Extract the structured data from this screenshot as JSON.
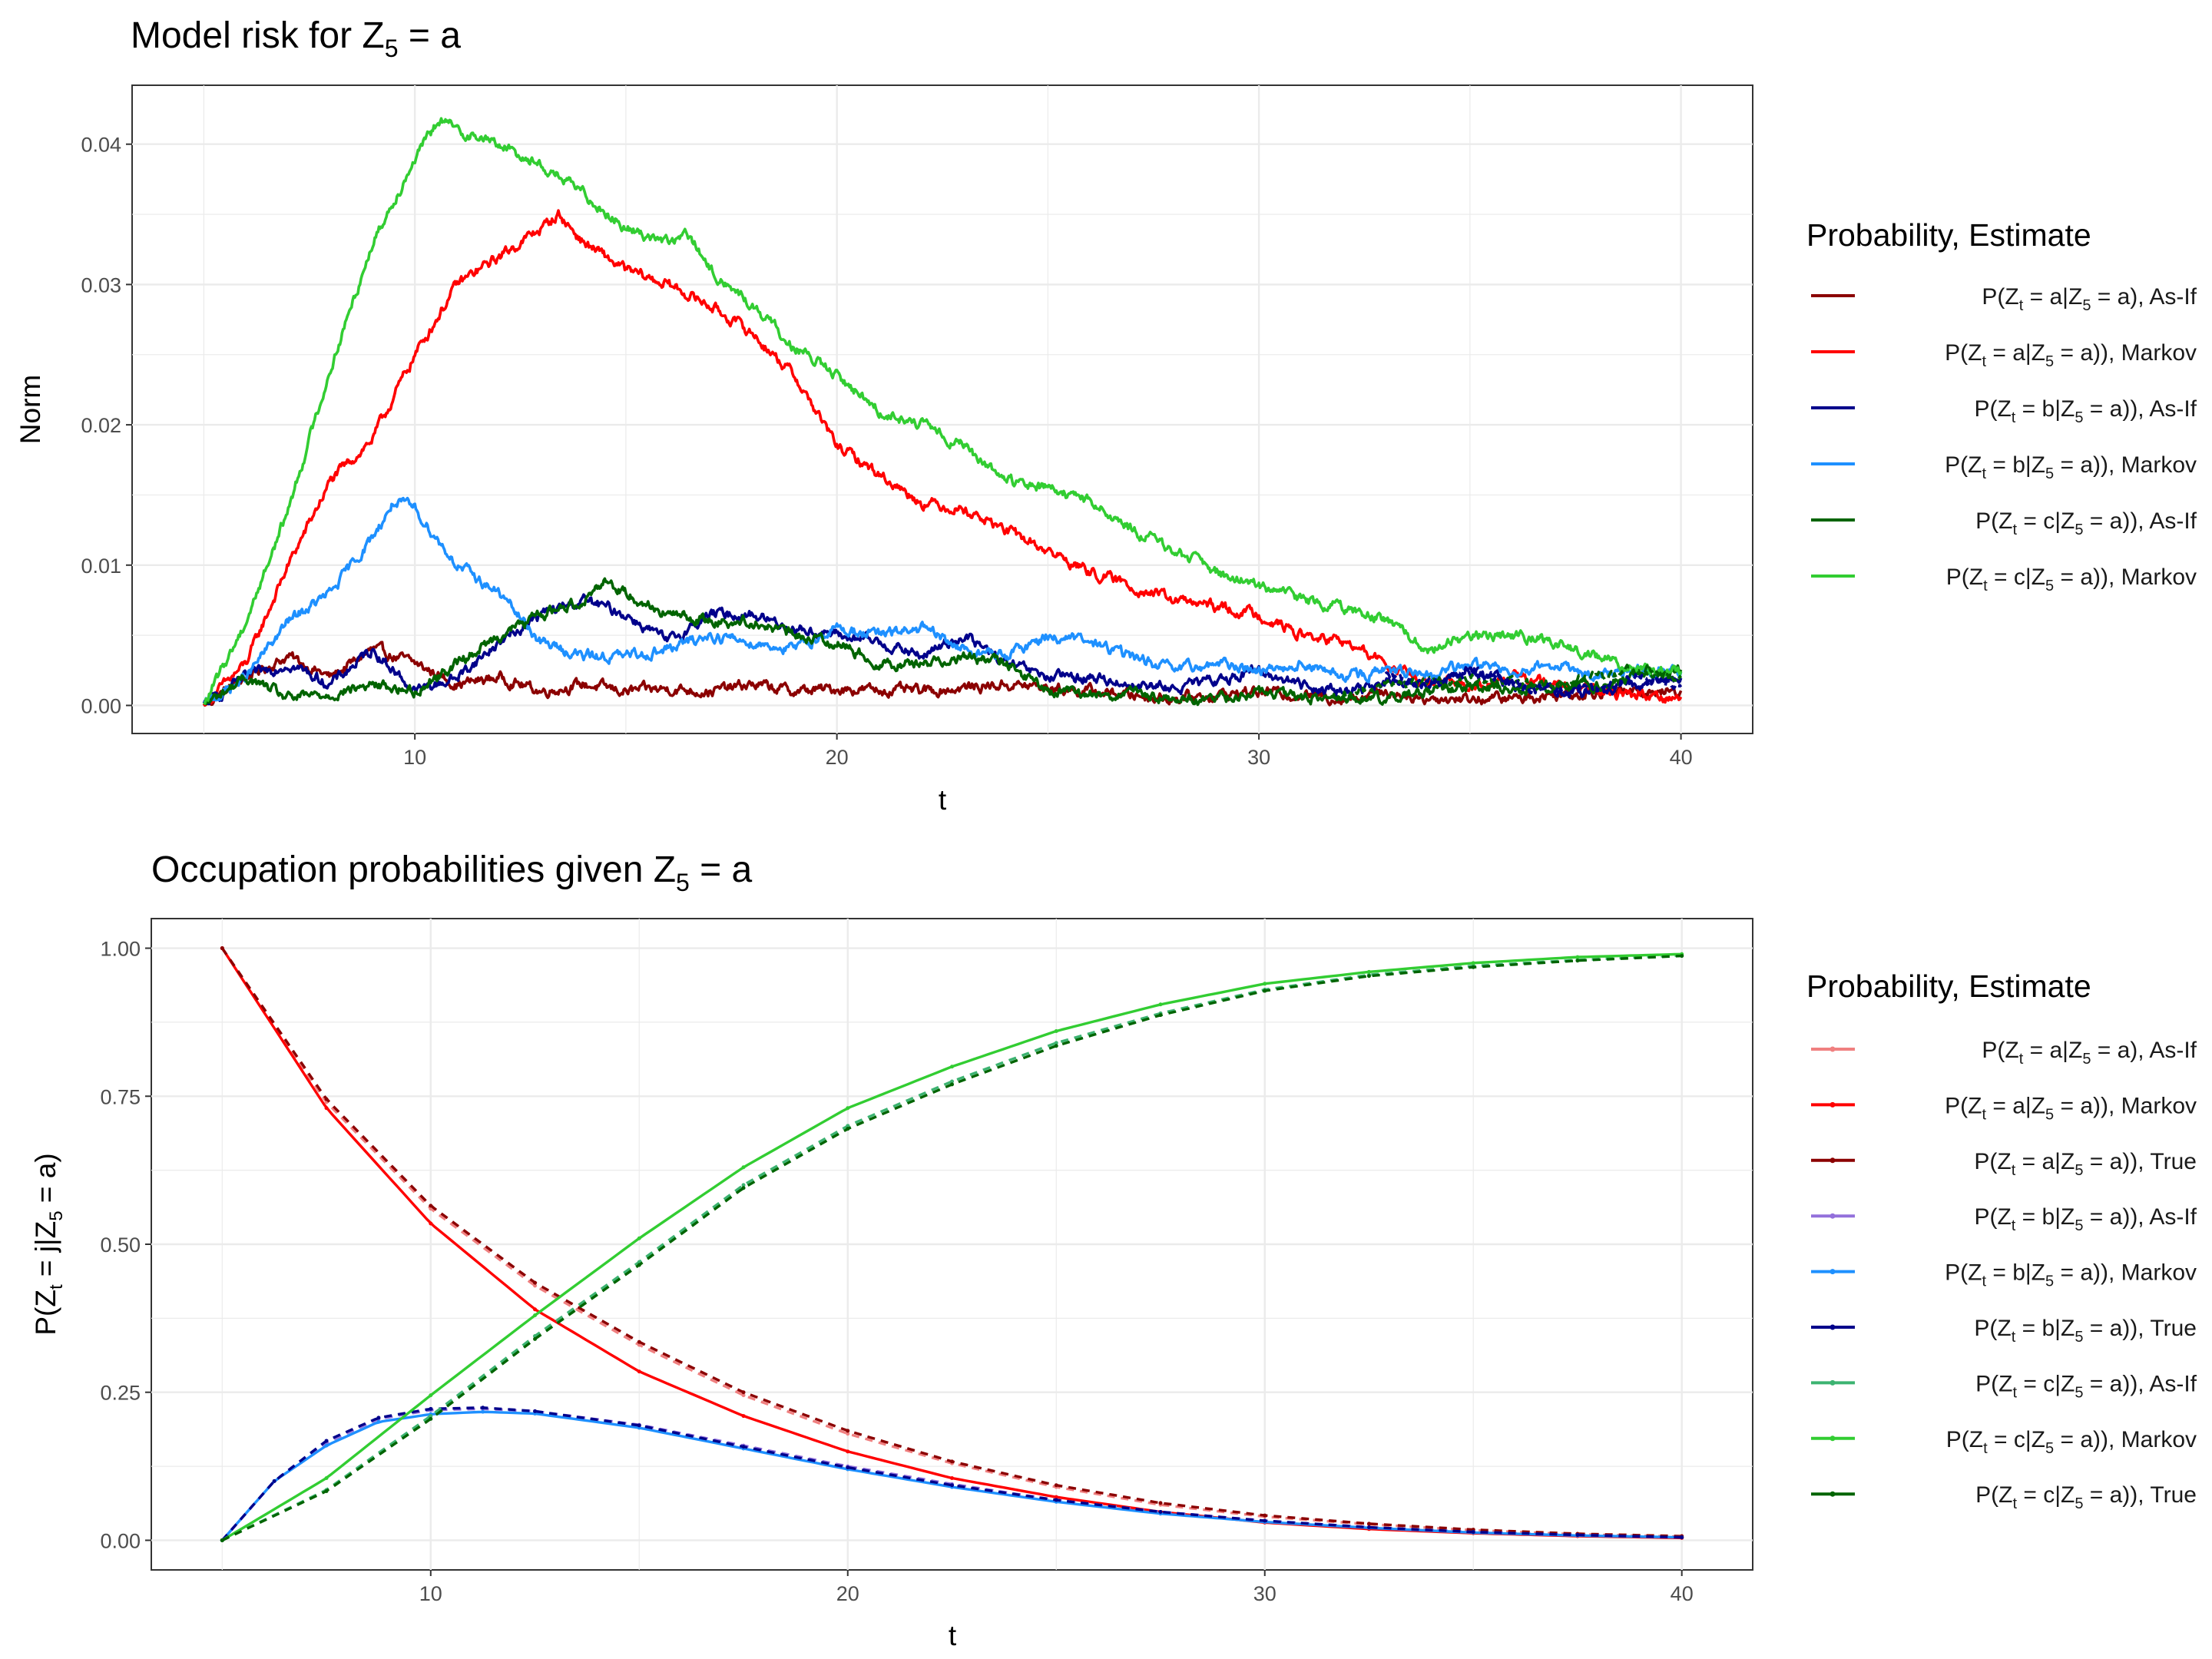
{
  "colors": {
    "a_asif": "#8b0000",
    "a_markov": "#ff0000",
    "b_asif": "#00008b",
    "b_markov": "#1e90ff",
    "c_asif": "#006400",
    "c_markov": "#32cd32",
    "bot_a_asif": "#f08080",
    "bot_a_markov": "#ff0000",
    "bot_a_true": "#8b0000",
    "bot_b_asif": "#9370db",
    "bot_b_markov": "#1e90ff",
    "bot_b_true": "#00008b",
    "bot_c_asif": "#3cb371",
    "bot_c_markov": "#32cd32",
    "bot_c_true": "#006400"
  },
  "chart_data": [
    {
      "type": "line",
      "title": "Model risk for Z₅ = a",
      "xlabel": "t",
      "ylabel": "Norm",
      "xlim": [
        3.3,
        41.7
      ],
      "ylim": [
        -0.002,
        0.0442
      ],
      "xticks": [
        "10",
        "20",
        "30",
        "40"
      ],
      "yticks": [
        "0.00",
        "0.01",
        "0.02",
        "0.03",
        "0.04"
      ],
      "grid": true,
      "legend_title": "Probability, Estimate",
      "legend_position": "right",
      "series": [
        {
          "name": "P(Zₜ = a|Z₅ = a), As-If",
          "color_key": "a_asif",
          "dashed": false,
          "x": [
            5,
            6,
            7,
            8,
            9,
            10,
            11,
            12,
            13,
            14,
            15,
            16,
            17,
            18,
            19,
            20,
            22,
            24,
            26,
            28,
            30,
            32,
            33,
            34,
            36,
            38,
            40
          ],
          "y": [
            0,
            0.002,
            0.0035,
            0.002,
            0.004,
            0.003,
            0.0015,
            0.002,
            0.001,
            0.0015,
            0.001,
            0.0012,
            0.001,
            0.0015,
            0.001,
            0.0012,
            0.001,
            0.0015,
            0.001,
            0.0005,
            0.001,
            0.0005,
            0.001,
            0.0005,
            0.0005,
            0.001,
            0.001
          ]
        },
        {
          "name": "P(Zₜ = a|Z₅ = a)), Markov",
          "color_key": "a_markov",
          "dashed": false,
          "x": [
            5,
            6,
            7,
            8,
            9,
            10,
            11,
            12,
            13,
            13.4,
            14,
            15,
            16,
            17,
            18,
            19,
            20,
            21,
            22,
            23,
            24,
            25,
            26,
            27,
            28,
            29,
            30,
            31,
            32,
            33,
            34,
            35,
            36,
            37,
            38,
            39,
            40
          ],
          "y": [
            0,
            0.003,
            0.01,
            0.016,
            0.019,
            0.025,
            0.03,
            0.032,
            0.034,
            0.035,
            0.033,
            0.031,
            0.03,
            0.0285,
            0.0265,
            0.0235,
            0.0185,
            0.0165,
            0.0145,
            0.014,
            0.0125,
            0.011,
            0.0095,
            0.0085,
            0.0075,
            0.007,
            0.0065,
            0.005,
            0.0045,
            0.003,
            0.0015,
            0.0015,
            0.002,
            0.0015,
            0.001,
            0.0008,
            0.0005
          ]
        },
        {
          "name": "P(Zₜ = b|Z₅ = a)), As-If",
          "color_key": "b_asif",
          "dashed": false,
          "x": [
            5,
            6,
            7,
            8,
            9,
            10,
            11,
            12,
            13,
            14,
            15,
            16,
            17,
            18,
            19,
            20,
            21,
            22,
            23,
            24,
            25,
            26,
            27,
            28,
            29,
            30,
            31,
            32,
            33,
            34,
            35,
            36,
            37,
            38,
            39,
            40
          ],
          "y": [
            0,
            0.002,
            0.003,
            0.0015,
            0.004,
            0.001,
            0.002,
            0.0045,
            0.0065,
            0.0075,
            0.0065,
            0.0045,
            0.0065,
            0.0065,
            0.0055,
            0.005,
            0.0045,
            0.0035,
            0.005,
            0.003,
            0.002,
            0.002,
            0.0015,
            0.0012,
            0.0018,
            0.0025,
            0.0015,
            0.001,
            0.0015,
            0.0015,
            0.0025,
            0.0015,
            0.001,
            0.001,
            0.0015,
            0.002
          ]
        },
        {
          "name": "P(Zₜ = b|Z₅ = a)), Markov",
          "color_key": "b_markov",
          "dashed": false,
          "x": [
            5,
            6,
            7,
            8,
            9,
            9.5,
            10,
            11,
            12,
            13,
            14,
            15,
            16,
            17,
            18,
            19,
            20,
            21,
            22,
            23,
            24,
            25,
            26,
            27,
            28,
            29,
            30,
            31,
            32,
            33,
            34,
            35,
            36,
            37,
            38,
            39,
            40
          ],
          "y": [
            0,
            0.002,
            0.006,
            0.008,
            0.012,
            0.0145,
            0.014,
            0.01,
            0.008,
            0.0045,
            0.0035,
            0.0035,
            0.004,
            0.005,
            0.0045,
            0.004,
            0.0055,
            0.005,
            0.0055,
            0.004,
            0.0035,
            0.005,
            0.0045,
            0.0035,
            0.0025,
            0.003,
            0.0025,
            0.003,
            0.002,
            0.0025,
            0.002,
            0.003,
            0.0025,
            0.003,
            0.002,
            0.0025,
            0.0025
          ]
        },
        {
          "name": "P(Zₜ = c|Z₅ = a)), As-If",
          "color_key": "c_asif",
          "dashed": false,
          "x": [
            5,
            6,
            7,
            8,
            9,
            10,
            11,
            12,
            13,
            14,
            14.5,
            15,
            16,
            17,
            18,
            19,
            20,
            21,
            22,
            23,
            24,
            25,
            26,
            27,
            28,
            29,
            30,
            31,
            32,
            33,
            34,
            35,
            36,
            37,
            38,
            39,
            40
          ],
          "y": [
            0,
            0.002,
            0.0005,
            0.0008,
            0.0015,
            0.001,
            0.003,
            0.005,
            0.0065,
            0.0075,
            0.009,
            0.008,
            0.0065,
            0.006,
            0.006,
            0.005,
            0.0045,
            0.003,
            0.003,
            0.0035,
            0.003,
            0.001,
            0.0008,
            0.0008,
            0.0005,
            0.0005,
            0.001,
            0.0005,
            0.0005,
            0.0005,
            0.001,
            0.0015,
            0.001,
            0.0015,
            0.0015,
            0.002,
            0.0025
          ]
        },
        {
          "name": "P(Zₜ = c|Z₅ = a)), Markov",
          "color_key": "c_markov",
          "dashed": false,
          "x": [
            5,
            6,
            7,
            8,
            9,
            10,
            10.6,
            11,
            12,
            13,
            14,
            15,
            16,
            16.5,
            17,
            18,
            19,
            20,
            21,
            22,
            23,
            24,
            25,
            26,
            27,
            28,
            29,
            30,
            31,
            32,
            33,
            34,
            35,
            36,
            37,
            38,
            39,
            40
          ],
          "y": [
            0,
            0.006,
            0.014,
            0.024,
            0.033,
            0.039,
            0.0418,
            0.041,
            0.04,
            0.0385,
            0.0365,
            0.034,
            0.033,
            0.0335,
            0.031,
            0.0285,
            0.0255,
            0.0235,
            0.021,
            0.02,
            0.0185,
            0.016,
            0.0155,
            0.0145,
            0.0125,
            0.011,
            0.0095,
            0.0085,
            0.0075,
            0.007,
            0.006,
            0.004,
            0.005,
            0.005,
            0.0045,
            0.0035,
            0.0025,
            0.0025
          ]
        },
        {
          "name": "",
          "color_key": "c_asif",
          "dashed": true,
          "x": [
            32,
            33,
            34,
            35,
            36,
            37,
            38,
            39,
            40
          ],
          "y": [
            0.0005,
            0.0015,
            0.0015,
            0.002,
            0.0015,
            0.0015,
            0.002,
            0.0025,
            0.002
          ]
        },
        {
          "name": "",
          "color_key": "b_asif",
          "dashed": true,
          "x": [
            33,
            34,
            35,
            36,
            37,
            38,
            39,
            40
          ],
          "y": [
            0.002,
            0.0015,
            0.0025,
            0.0015,
            0.001,
            0.0012,
            0.002,
            0.0015
          ]
        }
      ]
    },
    {
      "type": "line",
      "title": "Occupation probabilities given Z₅ = a",
      "xlabel": "t",
      "ylabel": "P(Zₜ = j|Z₅ = a)",
      "xlim": [
        3.3,
        41.7
      ],
      "ylim": [
        -0.05,
        1.05
      ],
      "xticks": [
        "10",
        "20",
        "30",
        "40"
      ],
      "yticks": [
        "0.00",
        "0.25",
        "0.50",
        "0.75",
        "1.00"
      ],
      "grid": true,
      "legend_title": "Probability, Estimate",
      "legend_position": "right",
      "series": [
        {
          "name": "P(Zₜ = a|Z₅ = a), As-If",
          "color_key": "bot_a_asif",
          "dashed": true,
          "x": [
            5,
            7.5,
            10,
            12.5,
            15,
            17.5,
            20,
            22.5,
            25,
            27.5,
            30,
            32.5,
            35,
            37.5,
            40
          ],
          "y": [
            1.0,
            0.74,
            0.56,
            0.43,
            0.33,
            0.245,
            0.18,
            0.13,
            0.09,
            0.06,
            0.04,
            0.027,
            0.017,
            0.01,
            0.006
          ]
        },
        {
          "name": "P(Zₜ = a|Z₅ = a)), Markov",
          "color_key": "bot_a_markov",
          "dashed": false,
          "x": [
            5,
            7.5,
            10,
            12.5,
            15,
            17.5,
            20,
            22.5,
            25,
            27.5,
            30,
            32.5,
            35,
            37.5,
            40
          ],
          "y": [
            1.0,
            0.73,
            0.535,
            0.39,
            0.285,
            0.21,
            0.15,
            0.105,
            0.073,
            0.048,
            0.03,
            0.019,
            0.012,
            0.007,
            0.004
          ]
        },
        {
          "name": "P(Zₜ = a|Z₅ = a)), True",
          "color_key": "bot_a_true",
          "dashed": true,
          "x": [
            5,
            7.5,
            10,
            12.5,
            15,
            17.5,
            20,
            22.5,
            25,
            27.5,
            30,
            32.5,
            35,
            37.5,
            40
          ],
          "y": [
            1.0,
            0.745,
            0.565,
            0.435,
            0.335,
            0.25,
            0.185,
            0.133,
            0.093,
            0.063,
            0.042,
            0.028,
            0.018,
            0.011,
            0.007
          ]
        },
        {
          "name": "P(Zₜ = b|Z₅ = a)), As-If",
          "color_key": "bot_b_asif",
          "dashed": true,
          "x": [
            5,
            6.25,
            7.5,
            8.75,
            10,
            11.25,
            12.5,
            15,
            17.5,
            20,
            22.5,
            25,
            27.5,
            30,
            32.5,
            35,
            37.5,
            40
          ],
          "y": [
            0,
            0.1,
            0.165,
            0.205,
            0.22,
            0.222,
            0.218,
            0.195,
            0.16,
            0.125,
            0.095,
            0.068,
            0.048,
            0.033,
            0.022,
            0.014,
            0.009,
            0.005
          ]
        },
        {
          "name": "P(Zₜ = b|Z₅ = a)), Markov",
          "color_key": "bot_b_markov",
          "dashed": false,
          "x": [
            5,
            6.25,
            7.5,
            8.75,
            10,
            11.25,
            12.5,
            15,
            17.5,
            20,
            22.5,
            25,
            27.5,
            30,
            32.5,
            35,
            37.5,
            40
          ],
          "y": [
            0,
            0.1,
            0.16,
            0.2,
            0.213,
            0.217,
            0.214,
            0.19,
            0.155,
            0.12,
            0.09,
            0.065,
            0.045,
            0.031,
            0.021,
            0.013,
            0.008,
            0.005
          ]
        },
        {
          "name": "P(Zₜ = b|Z₅ = a)), True",
          "color_key": "bot_b_true",
          "dashed": true,
          "x": [
            5,
            6.25,
            7.5,
            8.75,
            10,
            11.25,
            12.5,
            15,
            17.5,
            20,
            22.5,
            25,
            27.5,
            30,
            32.5,
            35,
            37.5,
            40
          ],
          "y": [
            0,
            0.1,
            0.168,
            0.207,
            0.222,
            0.224,
            0.218,
            0.194,
            0.158,
            0.123,
            0.093,
            0.068,
            0.048,
            0.033,
            0.022,
            0.014,
            0.009,
            0.005
          ]
        },
        {
          "name": "P(Zₜ = c|Z₅ = a)), As-If",
          "color_key": "bot_c_asif",
          "dashed": true,
          "x": [
            5,
            7.5,
            10,
            12.5,
            15,
            17.5,
            20,
            22.5,
            25,
            27.5,
            30,
            32.5,
            35,
            37.5,
            40
          ],
          "y": [
            0,
            0.085,
            0.21,
            0.345,
            0.47,
            0.6,
            0.7,
            0.775,
            0.84,
            0.89,
            0.93,
            0.955,
            0.97,
            0.98,
            0.988
          ]
        },
        {
          "name": "P(Zₜ = c|Z₅ = a)), Markov",
          "color_key": "bot_c_markov",
          "dashed": false,
          "x": [
            5,
            7.5,
            10,
            12.5,
            15,
            17.5,
            20,
            22.5,
            25,
            27.5,
            30,
            32.5,
            35,
            37.5,
            40
          ],
          "y": [
            0,
            0.105,
            0.245,
            0.38,
            0.51,
            0.63,
            0.73,
            0.8,
            0.86,
            0.905,
            0.94,
            0.96,
            0.975,
            0.985,
            0.99
          ]
        },
        {
          "name": "P(Zₜ = c|Z₅ = a)), True",
          "color_key": "bot_c_true",
          "dashed": true,
          "x": [
            5,
            7.5,
            10,
            12.5,
            15,
            17.5,
            20,
            22.5,
            25,
            27.5,
            30,
            32.5,
            35,
            37.5,
            40
          ],
          "y": [
            0,
            0.083,
            0.205,
            0.34,
            0.465,
            0.595,
            0.695,
            0.77,
            0.835,
            0.887,
            0.928,
            0.953,
            0.968,
            0.979,
            0.987
          ]
        }
      ]
    }
  ]
}
